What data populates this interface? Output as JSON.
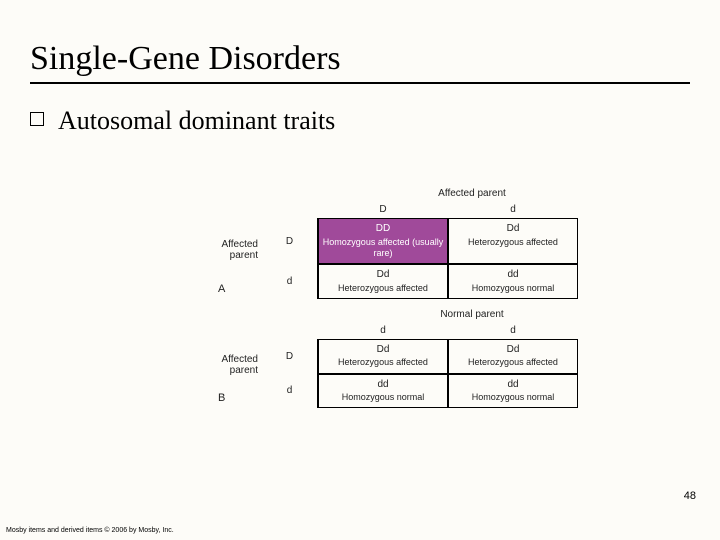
{
  "title": "Single-Gene Disorders",
  "bullet": {
    "text": "Autosomal dominant traits"
  },
  "panelA": {
    "letter": "A",
    "topLabel": "Affected parent",
    "sideLabel": "Affected parent",
    "colAlleles": [
      "D",
      "d"
    ],
    "rowAlleles": [
      "D",
      "d"
    ],
    "cells": [
      {
        "geno": "DD",
        "pheno": "Homozygous affected (usually rare)",
        "highlight": true
      },
      {
        "geno": "Dd",
        "pheno": "Heterozygous affected",
        "highlight": false
      },
      {
        "geno": "Dd",
        "pheno": "Heterozygous affected",
        "highlight": false
      },
      {
        "geno": "dd",
        "pheno": "Homozygous normal",
        "highlight": false
      }
    ]
  },
  "panelB": {
    "letter": "B",
    "topLabel": "Normal parent",
    "sideLabel": "Affected parent",
    "colAlleles": [
      "d",
      "d"
    ],
    "rowAlleles": [
      "D",
      "d"
    ],
    "cells": [
      {
        "geno": "Dd",
        "pheno": "Heterozygous affected",
        "highlight": false
      },
      {
        "geno": "Dd",
        "pheno": "Heterozygous affected",
        "highlight": false
      },
      {
        "geno": "dd",
        "pheno": "Homozygous normal",
        "highlight": false
      },
      {
        "geno": "dd",
        "pheno": "Homozygous normal",
        "highlight": false
      }
    ]
  },
  "colors": {
    "highlight_bg": "#a04a9a",
    "highlight_fg": "#ffffff",
    "cell_border": "#000000",
    "background": "#fdfcf8"
  },
  "pageNumber": "48",
  "copyright": "Mosby items and derived items © 2006 by Mosby, Inc."
}
